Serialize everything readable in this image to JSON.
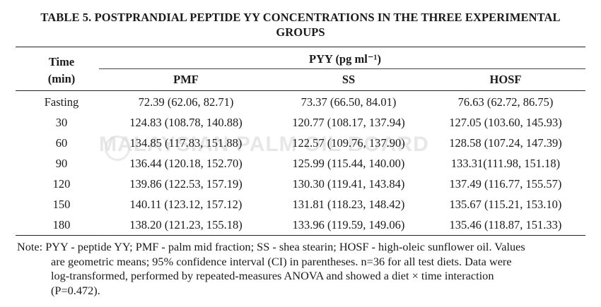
{
  "table": {
    "title_line1": "TABLE 5. POSTPRANDIAL PEPTIDE YY CONCENTRATIONS IN THE THREE EXPERIMENTAL",
    "title_line2": "GROUPS",
    "col_time_line1": "Time",
    "col_time_line2": "(min)",
    "group_header": "PYY (pg ml⁻¹)",
    "col_pmf": "PMF",
    "col_ss": "SS",
    "col_hosf": "HOSF",
    "rows": [
      {
        "time": "Fasting",
        "pmf": "72.39 (62.06, 82.71)",
        "ss": "73.37 (66.50, 84.01)",
        "hosf": "76.63 (62.72, 86.75)"
      },
      {
        "time": "30",
        "pmf": "124.83 (108.78, 140.88)",
        "ss": "120.77 (108.17, 137.94)",
        "hosf": "127.05 (103.60, 145.93)"
      },
      {
        "time": "60",
        "pmf": "134.85 (117.83, 151.88)",
        "ss": "122.57 (109.76, 137.90)",
        "hosf": "128.58 (107.24, 147.39)"
      },
      {
        "time": "90",
        "pmf": "136.44 (120.18, 152.70)",
        "ss": "125.99 (115.44, 140.00)",
        "hosf": "133.31(111.98, 151.18)"
      },
      {
        "time": "120",
        "pmf": "139.86 (122.53, 157.19)",
        "ss": "130.30 (119.41, 143.84)",
        "hosf": "137.49 (116.77, 155.57)"
      },
      {
        "time": "150",
        "pmf": "140.11 (123.12, 157.12)",
        "ss": "131.81 (118.23, 148.42)",
        "hosf": "135.67 (115.21, 153.10)"
      },
      {
        "time": "180",
        "pmf": "138.20 (121.23, 155.18)",
        "ss": "133.96 (119.59, 149.06)",
        "hosf": "135.46 (118.87, 151.33)"
      }
    ],
    "note_line1": "Note: PYY - peptide YY; PMF - palm mid fraction; SS - shea stearin; HOSF - high-oleic sunflower oil. Values",
    "note_line2": "are geometric means; 95% confidence interval (CI) in parentheses. n=36 for all test diets. Data were",
    "note_line3": "log-transformed, performed by repeated-measures ANOVA and showed a diet × time interaction",
    "note_line4": "(P=0.472).",
    "watermark": "MALAYSIAN PALM OIL BOARD"
  }
}
